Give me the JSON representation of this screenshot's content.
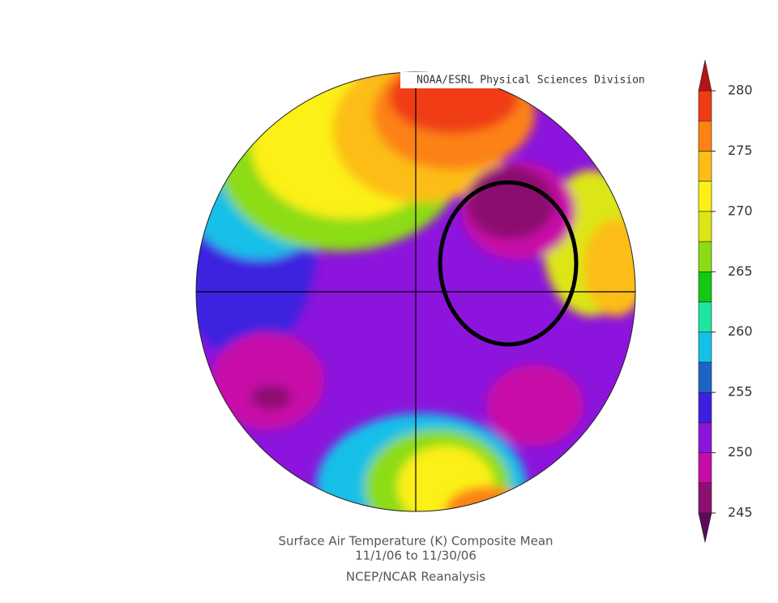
{
  "header": {
    "credit": "NOAA/ESRL Physical Sciences Division"
  },
  "caption": {
    "title": "Surface Air Temperature (K) Composite Mean",
    "dates": "11/1/06  to 11/30/06",
    "source": "NCEP/NCAR Reanalysis"
  },
  "colorbar": {
    "ticks": [
      245,
      250,
      255,
      260,
      265,
      270,
      275,
      280
    ],
    "colors": [
      "#8c1070",
      "#c80ca8",
      "#8c14dc",
      "#3c20e0",
      "#1e64c8",
      "#14c0e8",
      "#1ee6a0",
      "#14c814",
      "#8cdc14",
      "#dce614",
      "#fcf014",
      "#fcbe14",
      "#fc8214",
      "#f03c14"
    ],
    "under_color": "#5a0a5a",
    "over_color": "#b41414"
  }
}
